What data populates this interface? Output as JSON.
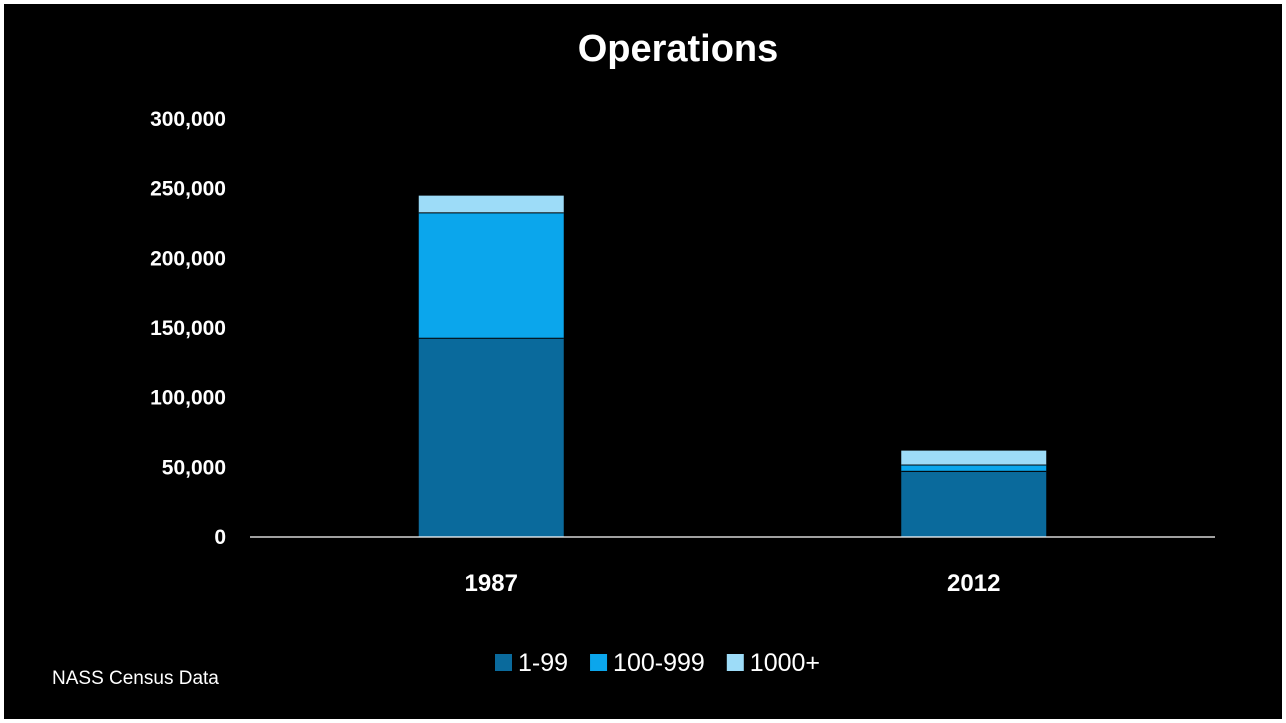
{
  "source_note": "NASS Census Data",
  "colors": {
    "background": "#000000",
    "text": "#ffffff",
    "axis": "#ffffff",
    "separator": "#000000"
  },
  "chart_data": {
    "type": "bar",
    "stacked": true,
    "title": "Operations",
    "xlabel": "",
    "ylabel": "",
    "categories": [
      "1987",
      "2012"
    ],
    "ylim": [
      0,
      300000
    ],
    "yticks": [
      0,
      50000,
      100000,
      150000,
      200000,
      250000,
      300000
    ],
    "ytick_labels": [
      "0",
      "50,000",
      "100,000",
      "150,000",
      "200,000",
      "250,000",
      "300,000"
    ],
    "grid": false,
    "legend_position": "bottom",
    "series": [
      {
        "name": "1-99",
        "color": "#0a6a9c",
        "values": [
          143000,
          47500
        ]
      },
      {
        "name": "100-999",
        "color": "#0ba6ec",
        "values": [
          90000,
          4500
        ]
      },
      {
        "name": "1000+",
        "color": "#9ddcf8",
        "values": [
          12000,
          10000
        ]
      }
    ]
  }
}
